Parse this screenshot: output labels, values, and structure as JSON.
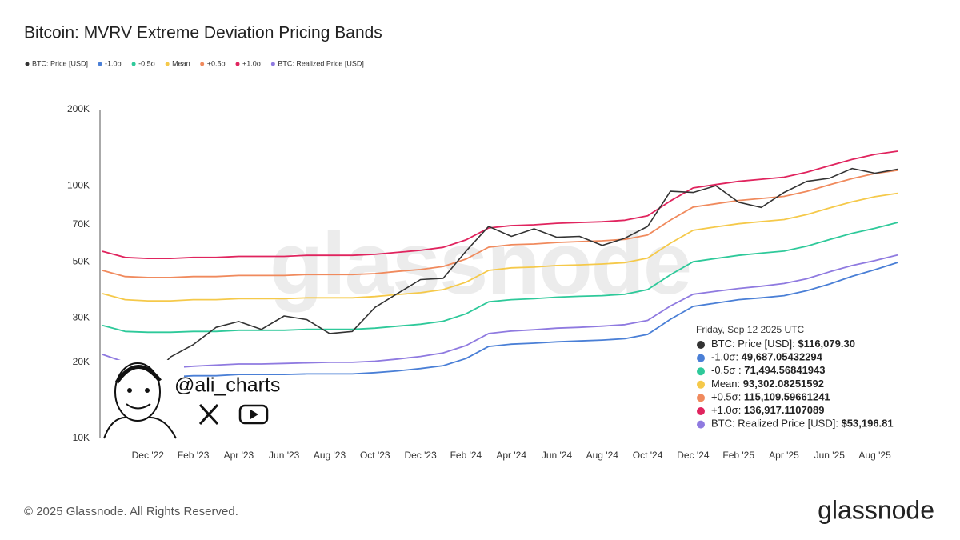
{
  "chart_data": {
    "type": "line",
    "title": "Bitcoin: MVRV Extreme Deviation Pricing Bands",
    "x": [
      "2022-10",
      "2022-11",
      "2022-12",
      "2023-01",
      "2023-02",
      "2023-03",
      "2023-04",
      "2023-05",
      "2023-06",
      "2023-07",
      "2023-08",
      "2023-09",
      "2023-10",
      "2023-11",
      "2023-12",
      "2024-01",
      "2024-02",
      "2024-03",
      "2024-04",
      "2024-05",
      "2024-06",
      "2024-07",
      "2024-08",
      "2024-09",
      "2024-10",
      "2024-11",
      "2024-12",
      "2025-01",
      "2025-02",
      "2025-03",
      "2025-04",
      "2025-05",
      "2025-06",
      "2025-07",
      "2025-08",
      "2025-09"
    ],
    "xlim": [
      "2022-10",
      "2025-09"
    ],
    "xticks": [
      {
        "value": "2022-12",
        "label": "Dec '22"
      },
      {
        "value": "2023-02",
        "label": "Feb '23"
      },
      {
        "value": "2023-04",
        "label": "Apr '23"
      },
      {
        "value": "2023-06",
        "label": "Jun '23"
      },
      {
        "value": "2023-08",
        "label": "Aug '23"
      },
      {
        "value": "2023-10",
        "label": "Oct '23"
      },
      {
        "value": "2023-12",
        "label": "Dec '23"
      },
      {
        "value": "2024-02",
        "label": "Feb '24"
      },
      {
        "value": "2024-04",
        "label": "Apr '24"
      },
      {
        "value": "2024-06",
        "label": "Jun '24"
      },
      {
        "value": "2024-08",
        "label": "Aug '24"
      },
      {
        "value": "2024-10",
        "label": "Oct '24"
      },
      {
        "value": "2024-12",
        "label": "Dec '24"
      },
      {
        "value": "2025-02",
        "label": "Feb '25"
      },
      {
        "value": "2025-04",
        "label": "Apr '25"
      },
      {
        "value": "2025-06",
        "label": "Jun '25"
      },
      {
        "value": "2025-08",
        "label": "Aug '25"
      }
    ],
    "log_scale": true,
    "ylim": [
      10000,
      200000
    ],
    "yticks": [
      {
        "value": 10000,
        "label": "10K"
      },
      {
        "value": 20000,
        "label": "20K"
      },
      {
        "value": 30000,
        "label": "30K"
      },
      {
        "value": 50000,
        "label": "50K"
      },
      {
        "value": 70000,
        "label": "70K"
      },
      {
        "value": 100000,
        "label": "100K"
      },
      {
        "value": 200000,
        "label": "200K"
      }
    ],
    "grid": false,
    "series": [
      {
        "name": "BTC: Price [USD]",
        "color": "#333333",
        "values": [
          19500,
          17000,
          16800,
          21000,
          23500,
          27500,
          29000,
          27000,
          30500,
          29500,
          26000,
          26500,
          33000,
          37500,
          42500,
          43000,
          55000,
          69000,
          63000,
          67500,
          62500,
          63000,
          58000,
          62000,
          69000,
          95000,
          94000,
          100000,
          86000,
          82000,
          94000,
          104000,
          107000,
          117000,
          112000,
          116079.3
        ]
      },
      {
        "name": "-1.0σ",
        "color": "#4a7fd6",
        "values": [
          18700,
          17700,
          17500,
          17500,
          17700,
          17700,
          17900,
          17900,
          17900,
          18000,
          18000,
          18000,
          18200,
          18500,
          18900,
          19400,
          20700,
          23100,
          23600,
          23800,
          24100,
          24300,
          24500,
          24800,
          25800,
          29600,
          33300,
          34300,
          35400,
          36000,
          36700,
          38400,
          40800,
          43800,
          46500,
          49687.05432294
        ]
      },
      {
        "name": "-0.5σ",
        "color": "#2ec99a",
        "values": [
          28000,
          26500,
          26300,
          26300,
          26500,
          26500,
          26800,
          26800,
          26800,
          27000,
          27000,
          27000,
          27300,
          27800,
          28300,
          29100,
          31100,
          34700,
          35400,
          35700,
          36200,
          36500,
          36700,
          37200,
          38800,
          44400,
          50000,
          51500,
          53000,
          54100,
          55100,
          57600,
          61200,
          64800,
          67800,
          71494.56841943
        ]
      },
      {
        "name": "Mean",
        "color": "#f5c94a",
        "values": [
          37400,
          35400,
          35000,
          35000,
          35400,
          35400,
          35700,
          35700,
          35700,
          36000,
          36000,
          36000,
          36400,
          37100,
          37700,
          38800,
          41500,
          46200,
          47300,
          47600,
          48300,
          48600,
          49000,
          49600,
          51700,
          59200,
          66600,
          68700,
          70700,
          72100,
          73400,
          76800,
          81600,
          86400,
          90400,
          93302.08251592
        ]
      },
      {
        "name": "+0.5σ",
        "color": "#f08a5d",
        "values": [
          46200,
          43700,
          43300,
          43300,
          43700,
          43700,
          44100,
          44100,
          44100,
          44500,
          44500,
          44500,
          44900,
          45800,
          46600,
          47900,
          51200,
          57100,
          58400,
          58800,
          59600,
          60100,
          60500,
          61300,
          63800,
          73100,
          82300,
          84800,
          87400,
          89000,
          90700,
          94900,
          100800,
          106700,
          111700,
          115109.59661241
        ]
      },
      {
        "name": "+1.0σ",
        "color": "#e0245e",
        "values": [
          55000,
          52000,
          51500,
          51500,
          52000,
          52000,
          52500,
          52500,
          52500,
          53000,
          53000,
          53000,
          53500,
          54500,
          55500,
          57000,
          61000,
          68000,
          69500,
          70000,
          71000,
          71500,
          72000,
          73000,
          76000,
          87000,
          98000,
          101000,
          104000,
          106000,
          108000,
          113000,
          120000,
          127000,
          133000,
          136917.1107089
        ]
      },
      {
        "name": "BTC: Realized Price [USD]",
        "color": "#8f7ae0",
        "values": [
          21500,
          20000,
          19200,
          19000,
          19300,
          19500,
          19700,
          19700,
          19800,
          19900,
          20000,
          20000,
          20200,
          20600,
          21100,
          21800,
          23300,
          26000,
          26600,
          26900,
          27300,
          27500,
          27800,
          28200,
          29300,
          33400,
          37200,
          38200,
          39200,
          40000,
          41000,
          42800,
          45600,
          48300,
          50500,
          53196.81
        ]
      }
    ],
    "tooltip": {
      "title": "Friday, Sep 12 2025 UTC",
      "separators": [
        ": ",
        ": ",
        " : ",
        ": ",
        ": ",
        ": ",
        ": "
      ],
      "values": [
        116079.3,
        49687.05432294,
        71494.56841943,
        93302.08251592,
        115109.59661241,
        136917.1107089,
        53196.81
      ],
      "value_labels": [
        "$116,079.30",
        "49,687.05432294",
        "71,494.56841943",
        "93,302.08251592",
        "115,109.59661241",
        "136,917.1107089",
        "$53,196.81"
      ]
    },
    "watermark": "glassnode",
    "handle": "@ali_charts",
    "copyright": "© 2025 Glassnode. All Rights Reserved.",
    "brand": "glassnode"
  }
}
